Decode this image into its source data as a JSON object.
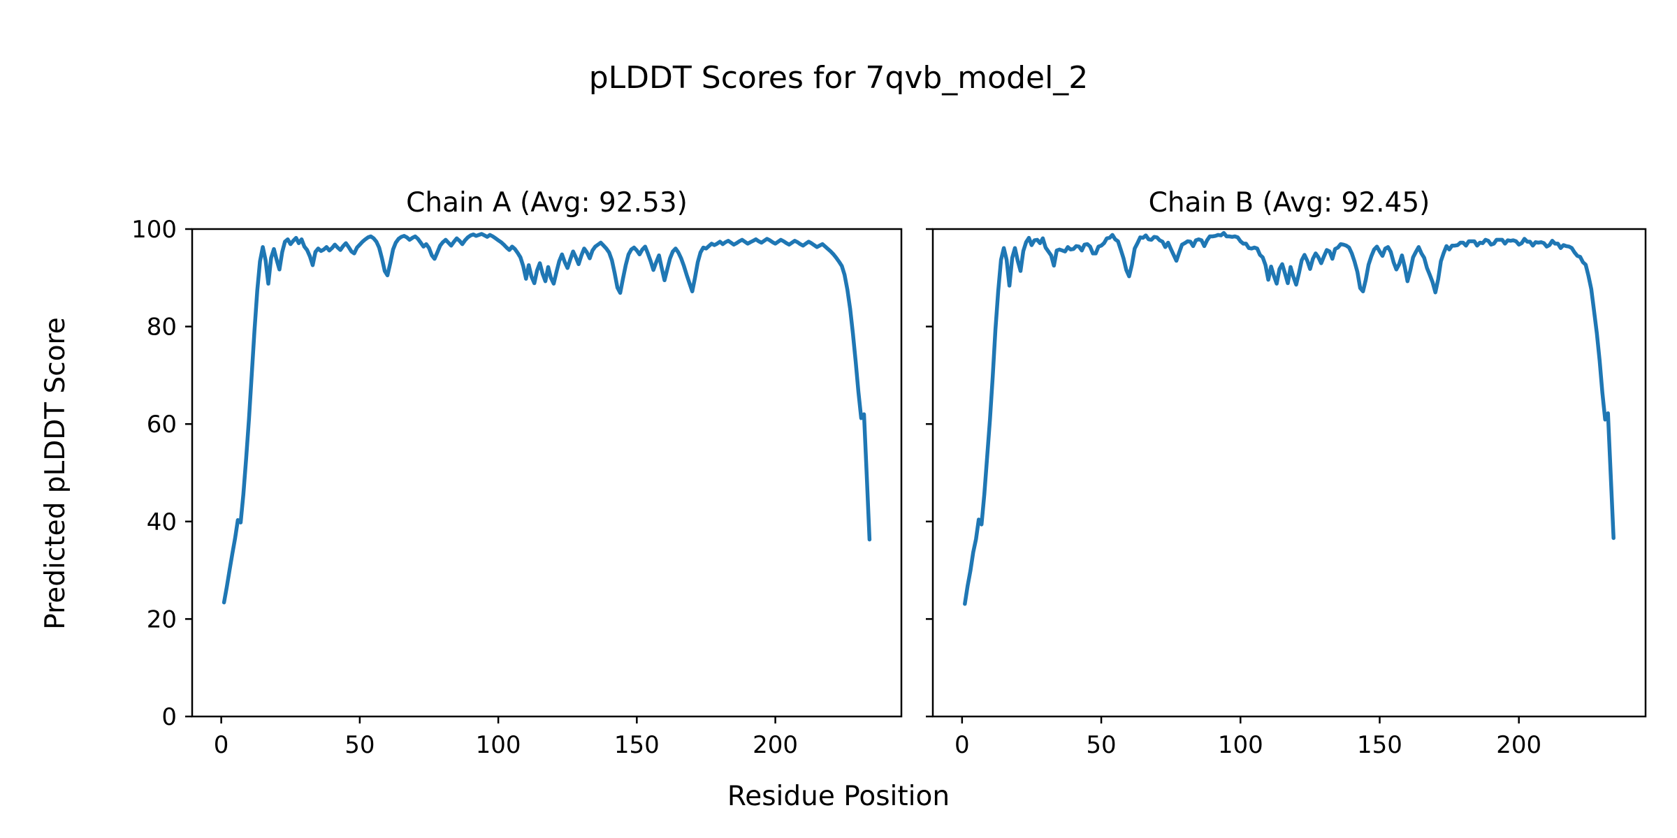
{
  "figure": {
    "suptitle": "pLDDT Scores for 7qvb_model_2",
    "background": "#ffffff"
  },
  "shared_labels": {
    "xlabel": "Residue Position",
    "ylabel": "Predicted pLDDT Score"
  },
  "chart_data": [
    {
      "type": "line",
      "title": "Chain A (Avg: 92.53)",
      "chain": "A",
      "average_plddt": 92.53,
      "line_color": "#1f77b4",
      "grid": false,
      "legend_position": "none",
      "xlim": [
        -10.5,
        245.5
      ],
      "ylim": [
        0,
        100
      ],
      "xticks": [
        0,
        50,
        100,
        150,
        200
      ],
      "yticks": [
        0,
        20,
        40,
        60,
        80,
        100
      ],
      "show_ytick_labels": true,
      "x_start": 1,
      "values": [
        23.4,
        26.6,
        30.0,
        33.4,
        36.6,
        40.3,
        39.8,
        45.6,
        53.0,
        61.0,
        70.0,
        79.2,
        87.4,
        93.4,
        96.3,
        93.6,
        88.8,
        94.1,
        95.9,
        93.7,
        91.7,
        95.3,
        97.4,
        97.9,
        96.9,
        97.6,
        98.2,
        97.1,
        97.9,
        96.4,
        95.7,
        94.4,
        92.6,
        95.3,
        96.0,
        95.5,
        95.8,
        96.3,
        95.6,
        96.1,
        96.8,
        96.2,
        95.7,
        96.5,
        97.1,
        96.3,
        95.4,
        95.0,
        96.2,
        96.8,
        97.4,
        97.9,
        98.3,
        98.5,
        98.1,
        97.4,
        96.2,
        94.0,
        91.4,
        90.5,
        93.0,
        95.8,
        97.2,
        98.0,
        98.4,
        98.6,
        98.3,
        97.8,
        98.2,
        98.5,
        98.0,
        97.2,
        96.4,
        96.9,
        96.1,
        94.6,
        93.9,
        95.2,
        96.6,
        97.3,
        97.8,
        97.2,
        96.6,
        97.4,
        98.1,
        97.6,
        96.9,
        97.7,
        98.3,
        98.7,
        98.9,
        98.6,
        98.8,
        99.0,
        98.7,
        98.4,
        98.8,
        98.5,
        98.1,
        97.7,
        97.3,
        96.8,
        96.2,
        95.7,
        96.4,
        95.9,
        95.1,
        94.2,
        92.4,
        89.8,
        92.6,
        90.2,
        88.9,
        91.5,
        93.0,
        90.8,
        89.3,
        92.2,
        90.0,
        88.8,
        91.2,
        93.4,
        94.8,
        93.2,
        92.0,
        93.8,
        95.4,
        94.2,
        92.8,
        94.6,
        96.0,
        95.2,
        94.0,
        95.6,
        96.4,
        96.8,
        97.2,
        96.6,
        96.0,
        95.2,
        93.6,
        91.0,
        88.0,
        86.9,
        89.8,
        92.6,
        94.8,
        95.8,
        96.2,
        95.6,
        94.8,
        95.8,
        96.4,
        95.0,
        93.4,
        91.6,
        93.2,
        94.6,
        92.0,
        89.5,
        91.8,
        94.0,
        95.4,
        96.0,
        95.2,
        94.0,
        92.4,
        90.6,
        88.9,
        87.2,
        90.0,
        93.2,
        95.2,
        96.2,
        96.0,
        96.5,
        97.0,
        96.7,
        97.0,
        97.4,
        96.9,
        97.3,
        97.6,
        97.2,
        96.8,
        97.1,
        97.5,
        97.8,
        97.4,
        97.0,
        97.3,
        97.6,
        97.9,
        97.5,
        97.2,
        97.6,
        98.0,
        97.7,
        97.3,
        97.0,
        97.4,
        97.8,
        97.5,
        97.1,
        96.8,
        97.2,
        97.6,
        97.3,
        96.9,
        96.6,
        97.0,
        97.4,
        97.1,
        96.7,
        96.3,
        96.6,
        96.9,
        96.4,
        95.9,
        95.4,
        94.8,
        94.1,
        93.3,
        92.4,
        90.6,
        87.6,
        83.6,
        78.6,
        72.8,
        66.6,
        61.2,
        62.0,
        49.5,
        36.3
      ]
    },
    {
      "type": "line",
      "title": "Chain B (Avg: 92.45)",
      "chain": "B",
      "average_plddt": 92.45,
      "line_color": "#1f77b4",
      "grid": false,
      "legend_position": "none",
      "xlim": [
        -10.5,
        245.5
      ],
      "ylim": [
        0,
        100
      ],
      "xticks": [
        0,
        50,
        100,
        150,
        200
      ],
      "yticks": [
        0,
        20,
        40,
        60,
        80,
        100
      ],
      "show_ytick_labels": false,
      "x_start": 1,
      "values": [
        23.1,
        26.8,
        29.9,
        33.7,
        36.4,
        40.4,
        39.4,
        45.6,
        53.2,
        60.8,
        69.7,
        79.4,
        87.3,
        93.7,
        96.1,
        93.7,
        88.4,
        94.1,
        96.1,
        93.5,
        91.4,
        95.5,
        97.3,
        98.2,
        96.7,
        97.7,
        97.8,
        97.1,
        98.1,
        96.2,
        95.4,
        94.6,
        92.5,
        95.6,
        95.8,
        95.6,
        95.4,
        96.3,
        95.8,
        95.9,
        96.5,
        96.4,
        95.6,
        96.8,
        96.9,
        96.4,
        95.0,
        95.0,
        96.4,
        96.6,
        97.1,
        98.1,
        98.2,
        98.8,
        97.9,
        97.5,
        95.8,
        94.0,
        91.6,
        90.3,
        92.7,
        96.0,
        97.1,
        98.3,
        98.2,
        98.7,
        97.9,
        97.8,
        98.4,
        98.3,
        97.7,
        97.4,
        96.3,
        97.2,
        95.9,
        94.7,
        93.5,
        95.2,
        96.8,
        97.1,
        97.5,
        97.4,
        96.5,
        97.7,
        97.9,
        97.7,
        96.5,
        97.7,
        98.5,
        98.5,
        98.6,
        98.8,
        98.7,
        99.2,
        98.5,
        98.5,
        98.4,
        98.5,
        98.3,
        97.5,
        97.0,
        97.0,
        96.1,
        96.0,
        96.2,
        96.0,
        94.7,
        94.2,
        92.6,
        89.6,
        92.3,
        90.4,
        88.8,
        91.8,
        92.8,
        90.9,
        88.9,
        92.2,
        90.2,
        88.6,
        90.9,
        93.6,
        94.7,
        93.5,
        91.8,
        93.9,
        95.0,
        94.2,
        93.0,
        94.4,
        95.7,
        95.4,
        93.9,
        95.9,
        96.2,
        96.9,
        96.8,
        96.6,
        96.2,
        95.0,
        93.3,
        91.2,
        87.9,
        87.2,
        89.6,
        92.7,
        94.4,
        95.8,
        96.4,
        95.4,
        94.5,
        96.0,
        96.3,
        95.3,
        93.2,
        91.7,
        92.8,
        94.6,
        92.2,
        89.3,
        91.5,
        94.2,
        95.3,
        96.3,
        95.0,
        94.1,
        92.0,
        90.6,
        89.1,
        87.0,
        89.7,
        93.4,
        95.1,
        96.5,
        95.8,
        96.6,
        96.6,
        96.7,
        97.2,
        97.2,
        96.6,
        97.5,
        97.5,
        97.5,
        96.6,
        97.2,
        97.1,
        97.8,
        97.6,
        96.8,
        97.0,
        97.8,
        97.8,
        97.8,
        97.0,
        97.7,
        97.6,
        97.7,
        97.5,
        96.8,
        97.1,
        98.0,
        97.4,
        97.4,
        96.6,
        97.3,
        97.2,
        97.3,
        97.1,
        96.4,
        96.7,
        97.6,
        97.0,
        97.0,
        96.1,
        96.7,
        96.5,
        96.4,
        96.1,
        95.2,
        94.5,
        94.3,
        93.2,
        92.7,
        90.4,
        87.7,
        83.2,
        78.6,
        73.0,
        66.4,
        60.9,
        62.2,
        49.4,
        36.6
      ]
    }
  ]
}
